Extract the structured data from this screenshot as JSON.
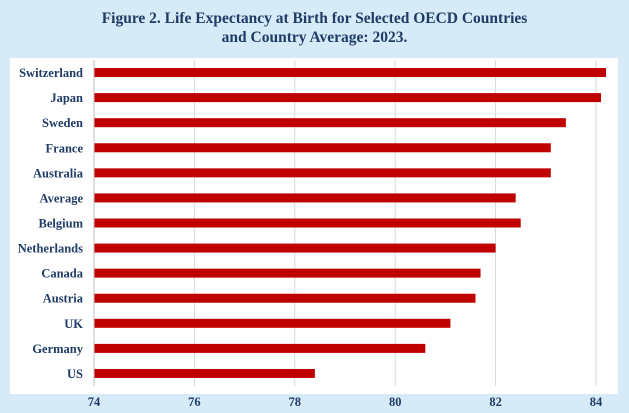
{
  "chart_data": {
    "type": "bar",
    "orientation": "horizontal",
    "title_line1": "Figure 2. Life Expectancy at Birth for Selected OECD Countries",
    "title_line2": "and Country Average: 2023.",
    "categories": [
      "Switzerland",
      "Japan",
      "Sweden",
      "France",
      "Australia",
      "Average",
      "Belgium",
      "Netherlands",
      "Canada",
      "Austria",
      "UK",
      "Germany",
      "US"
    ],
    "values": [
      84.2,
      84.1,
      83.4,
      83.1,
      83.1,
      82.4,
      82.5,
      82.0,
      81.7,
      81.6,
      81.1,
      80.6,
      78.4
    ],
    "xlim": [
      74,
      84
    ],
    "xticks": [
      "74",
      "76",
      "78",
      "80",
      "82",
      "84"
    ],
    "bar_color": "#c00000",
    "grid": true
  }
}
